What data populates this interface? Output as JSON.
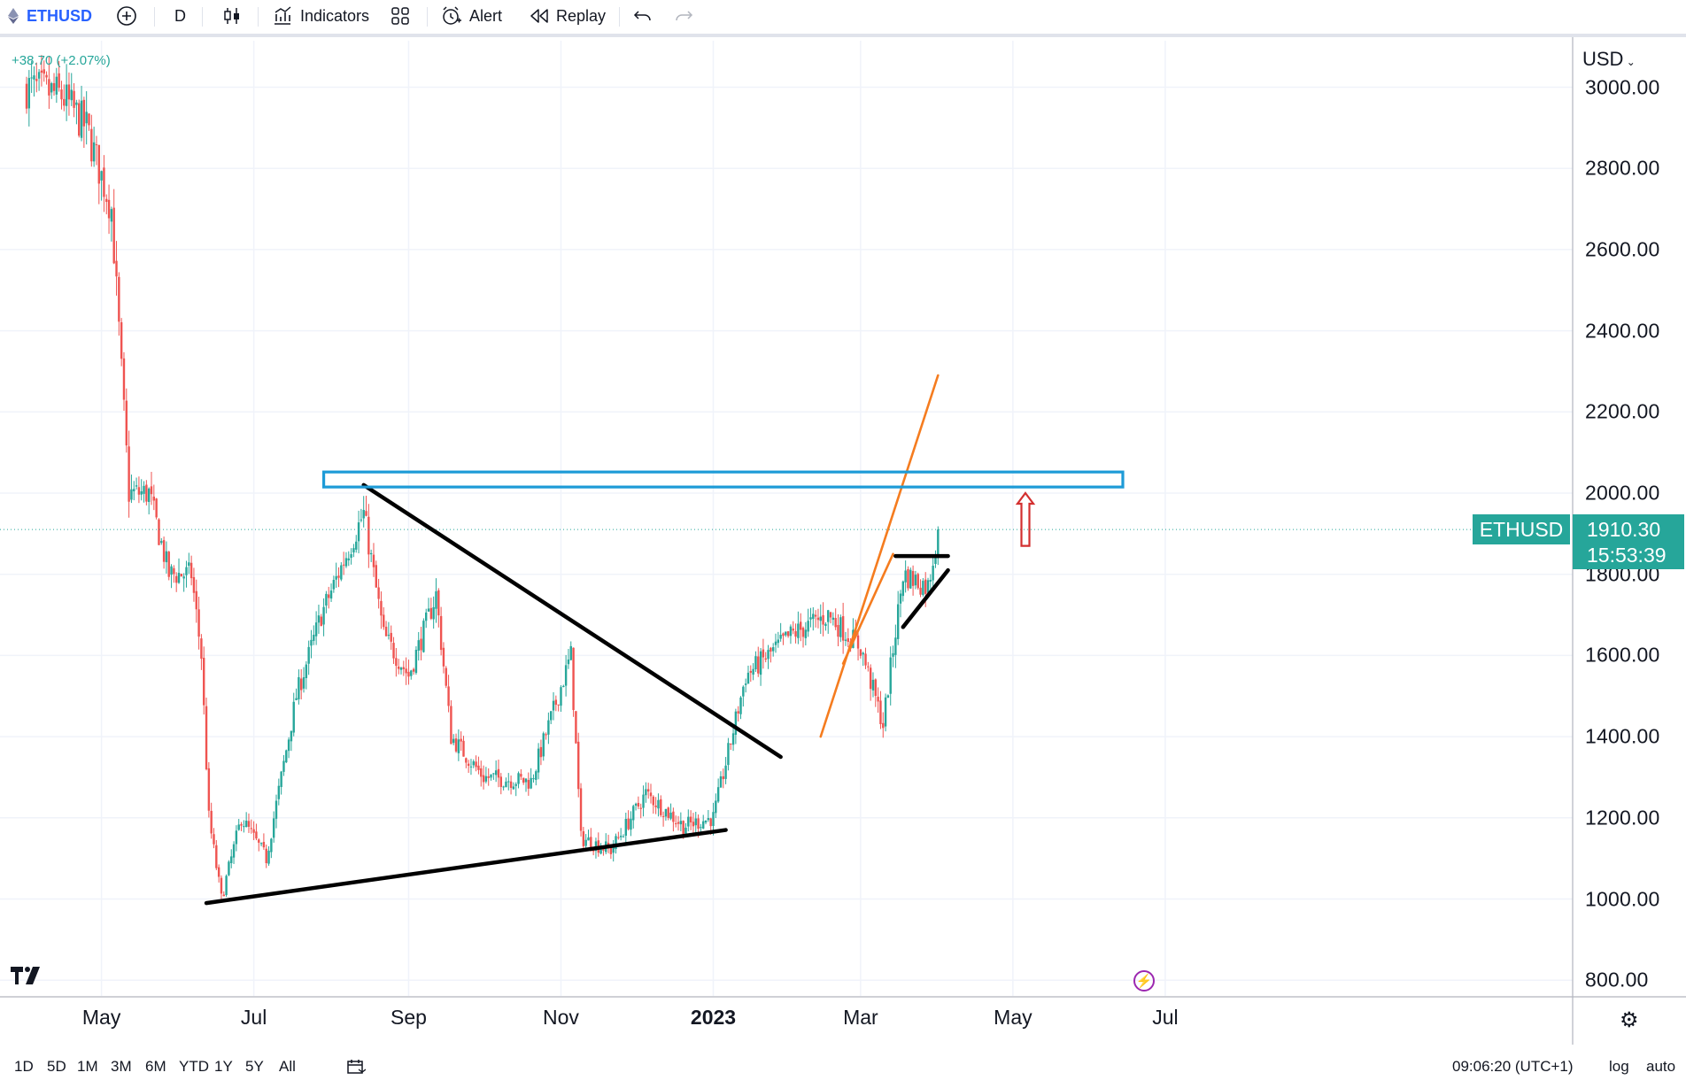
{
  "toolbar": {
    "symbol": "ETHUSD",
    "interval": "D",
    "indicators_label": "Indicators",
    "alert_label": "Alert",
    "replay_label": "Replay"
  },
  "legend": {
    "change_text": "+38.70 (+2.07%)"
  },
  "price_axis": {
    "currency": "USD",
    "ticks": [
      "3000.00",
      "2800.00",
      "2600.00",
      "2400.00",
      "2200.00",
      "2000.00",
      "1800.00",
      "1600.00",
      "1400.00",
      "1200.00",
      "1000.00",
      "800.00"
    ]
  },
  "time_axis": {
    "ticks": [
      "May",
      "Jul",
      "Sep",
      "Nov",
      "2023",
      "Mar",
      "May",
      "Jul"
    ]
  },
  "last_price": {
    "symbol": "ETHUSD",
    "price": "1910.30",
    "countdown": "15:53:39"
  },
  "range_buttons": [
    "1D",
    "5D",
    "1M",
    "3M",
    "6M",
    "YTD",
    "1Y",
    "5Y",
    "All"
  ],
  "status": {
    "clock": "09:06:20 (UTC+1)",
    "log_label": "log",
    "auto_label": "auto"
  },
  "colors": {
    "up": "#26a69a",
    "down": "#ef5350",
    "drawing_black": "#000000",
    "trend_orange": "#f57c1f",
    "zone_blue": "#1e9bd7",
    "arrow_red": "#d32f2f",
    "axis_text": "#131722",
    "grid": "#f0f3fa"
  },
  "chart_data": {
    "type": "candlestick",
    "symbol": "ETHUSD",
    "interval": "D",
    "ylim": [
      780,
      3110
    ],
    "series_close": [
      {
        "date": "2022-04-01",
        "close": 3000
      },
      {
        "date": "2022-04-15",
        "close": 2980
      },
      {
        "date": "2022-04-25",
        "close": 2900
      },
      {
        "date": "2022-05-05",
        "close": 2700
      },
      {
        "date": "2022-05-09",
        "close": 2300
      },
      {
        "date": "2022-05-12",
        "close": 2000
      },
      {
        "date": "2022-05-20",
        "close": 2000
      },
      {
        "date": "2022-05-28",
        "close": 1800
      },
      {
        "date": "2022-06-06",
        "close": 1800
      },
      {
        "date": "2022-06-10",
        "close": 1600
      },
      {
        "date": "2022-06-13",
        "close": 1200
      },
      {
        "date": "2022-06-18",
        "close": 1000
      },
      {
        "date": "2022-06-26",
        "close": 1200
      },
      {
        "date": "2022-07-06",
        "close": 1100
      },
      {
        "date": "2022-07-18",
        "close": 1500
      },
      {
        "date": "2022-07-28",
        "close": 1700
      },
      {
        "date": "2022-08-14",
        "close": 1950
      },
      {
        "date": "2022-08-22",
        "close": 1650
      },
      {
        "date": "2022-09-01",
        "close": 1550
      },
      {
        "date": "2022-09-12",
        "close": 1750
      },
      {
        "date": "2022-09-18",
        "close": 1400
      },
      {
        "date": "2022-10-01",
        "close": 1300
      },
      {
        "date": "2022-10-20",
        "close": 1290
      },
      {
        "date": "2022-11-05",
        "close": 1600
      },
      {
        "date": "2022-11-09",
        "close": 1150
      },
      {
        "date": "2022-11-21",
        "close": 1120
      },
      {
        "date": "2022-12-05",
        "close": 1260
      },
      {
        "date": "2022-12-20",
        "close": 1180
      },
      {
        "date": "2023-01-01",
        "close": 1200
      },
      {
        "date": "2023-01-14",
        "close": 1550
      },
      {
        "date": "2023-02-01",
        "close": 1650
      },
      {
        "date": "2023-02-16",
        "close": 1700
      },
      {
        "date": "2023-03-01",
        "close": 1620
      },
      {
        "date": "2023-03-10",
        "close": 1430
      },
      {
        "date": "2023-03-18",
        "close": 1800
      },
      {
        "date": "2023-03-28",
        "close": 1770
      },
      {
        "date": "2023-04-01",
        "close": 1910.3
      }
    ],
    "drawings": [
      {
        "type": "trendline",
        "color": "black",
        "from": {
          "date": "2022-06-12",
          "price": 990
        },
        "to": {
          "date": "2023-01-06",
          "price": 1170
        }
      },
      {
        "type": "trendline",
        "color": "black",
        "from": {
          "date": "2022-08-14",
          "price": 2020
        },
        "to": {
          "date": "2023-01-28",
          "price": 1350
        }
      },
      {
        "type": "trendline",
        "color": "orange",
        "from": {
          "date": "2023-02-13",
          "price": 1400
        },
        "to": {
          "date": "2023-04-01",
          "price": 2290
        }
      },
      {
        "type": "trendline",
        "color": "orange",
        "from": {
          "date": "2023-02-22",
          "price": 1580
        },
        "to": {
          "date": "2023-03-14",
          "price": 1850
        }
      },
      {
        "type": "horizontal",
        "color": "black",
        "from": {
          "date": "2023-03-15",
          "price": 1845
        },
        "to": {
          "date": "2023-04-05",
          "price": 1845
        }
      },
      {
        "type": "trendline",
        "color": "black",
        "from": {
          "date": "2023-03-18",
          "price": 1670
        },
        "to": {
          "date": "2023-04-05",
          "price": 1810
        }
      },
      {
        "type": "rectangle",
        "color": "blue",
        "from": {
          "date": "2022-07-29",
          "price": 2052
        },
        "to": {
          "date": "2023-06-14",
          "price": 2015
        }
      },
      {
        "type": "arrow_up",
        "color": "red",
        "at": {
          "date": "2023-05-06"
        },
        "from_price": 1870,
        "to_price": 2000
      }
    ]
  }
}
